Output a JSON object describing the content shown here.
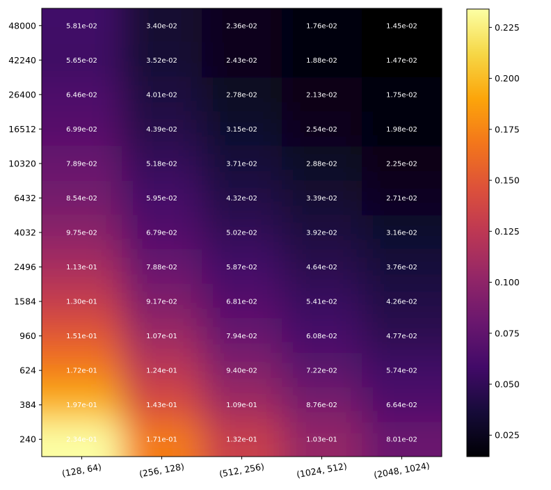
{
  "chart_data": {
    "type": "heatmap",
    "title": "",
    "xlabel": "",
    "ylabel": "",
    "x_categories": [
      "(128, 64)",
      "(256, 128)",
      "(512, 256)",
      "(1024, 512)",
      "(2048, 1024)"
    ],
    "y_categories": [
      "48000",
      "42240",
      "26400",
      "16512",
      "10320",
      "6432",
      "4032",
      "2496",
      "1584",
      "960",
      "624",
      "384",
      "240"
    ],
    "values": [
      [
        0.0581,
        0.034,
        0.0236,
        0.0176,
        0.0145
      ],
      [
        0.0565,
        0.0352,
        0.0243,
        0.0188,
        0.0147
      ],
      [
        0.0646,
        0.0401,
        0.0278,
        0.0213,
        0.0175
      ],
      [
        0.0699,
        0.0439,
        0.0315,
        0.0254,
        0.0198
      ],
      [
        0.0789,
        0.0518,
        0.0371,
        0.0288,
        0.0225
      ],
      [
        0.0854,
        0.0595,
        0.0432,
        0.0339,
        0.0271
      ],
      [
        0.0975,
        0.0679,
        0.0502,
        0.0392,
        0.0316
      ],
      [
        0.113,
        0.0788,
        0.0587,
        0.0464,
        0.0376
      ],
      [
        0.13,
        0.0917,
        0.0681,
        0.0541,
        0.0426
      ],
      [
        0.151,
        0.107,
        0.0794,
        0.0608,
        0.0477
      ],
      [
        0.172,
        0.124,
        0.094,
        0.0722,
        0.0574
      ],
      [
        0.197,
        0.143,
        0.109,
        0.0876,
        0.0664
      ],
      [
        0.234,
        0.171,
        0.132,
        0.103,
        0.0801
      ]
    ],
    "value_labels": [
      [
        "5.81e-02",
        "3.40e-02",
        "2.36e-02",
        "1.76e-02",
        "1.45e-02"
      ],
      [
        "5.65e-02",
        "3.52e-02",
        "2.43e-02",
        "1.88e-02",
        "1.47e-02"
      ],
      [
        "6.46e-02",
        "4.01e-02",
        "2.78e-02",
        "2.13e-02",
        "1.75e-02"
      ],
      [
        "6.99e-02",
        "4.39e-02",
        "3.15e-02",
        "2.54e-02",
        "1.98e-02"
      ],
      [
        "7.89e-02",
        "5.18e-02",
        "3.71e-02",
        "2.88e-02",
        "2.25e-02"
      ],
      [
        "8.54e-02",
        "5.95e-02",
        "4.32e-02",
        "3.39e-02",
        "2.71e-02"
      ],
      [
        "9.75e-02",
        "6.79e-02",
        "5.02e-02",
        "3.92e-02",
        "3.16e-02"
      ],
      [
        "1.13e-01",
        "7.88e-02",
        "5.87e-02",
        "4.64e-02",
        "3.76e-02"
      ],
      [
        "1.30e-01",
        "9.17e-02",
        "6.81e-02",
        "5.41e-02",
        "4.26e-02"
      ],
      [
        "1.51e-01",
        "1.07e-01",
        "7.94e-02",
        "6.08e-02",
        "4.77e-02"
      ],
      [
        "1.72e-01",
        "1.24e-01",
        "9.40e-02",
        "7.22e-02",
        "5.74e-02"
      ],
      [
        "1.97e-01",
        "1.43e-01",
        "1.09e-01",
        "8.76e-02",
        "6.64e-02"
      ],
      [
        "2.34e-01",
        "1.71e-01",
        "1.32e-01",
        "1.03e-01",
        "8.01e-02"
      ]
    ],
    "colormap": "inferno",
    "vmin": 0.0145,
    "vmax": 0.234,
    "colorbar_ticks": [
      0.025,
      0.05,
      0.075,
      0.1,
      0.125,
      0.15,
      0.175,
      0.2,
      0.225
    ],
    "colorbar_tick_labels": [
      "0.025",
      "0.050",
      "0.075",
      "0.100",
      "0.125",
      "0.150",
      "0.175",
      "0.200",
      "0.225"
    ],
    "legend": "colorbar-right"
  }
}
